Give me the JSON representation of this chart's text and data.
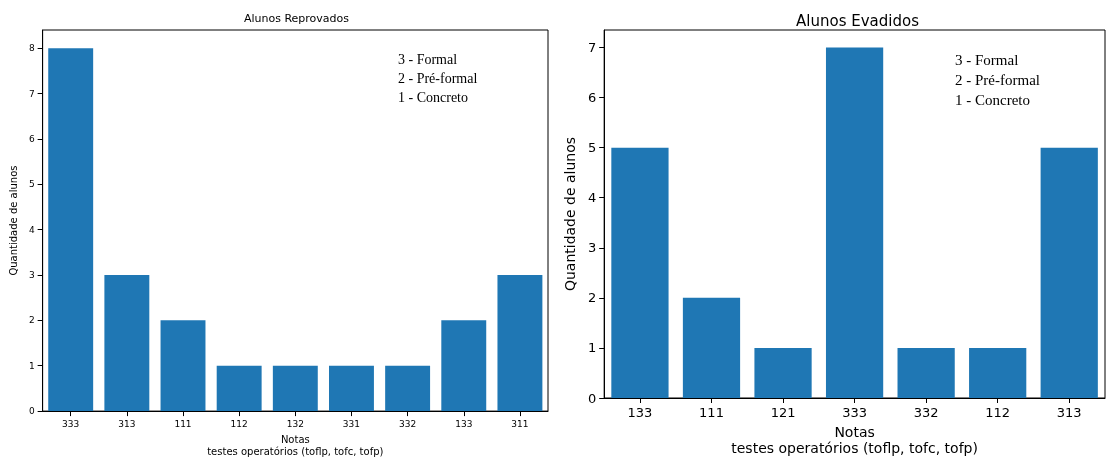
{
  "chart_data": [
    {
      "type": "bar",
      "title": "Alunos Reprovados",
      "xlabel": "Notas\ntestes operatórios (toflp, tofc, tofp)",
      "ylabel": "Quantidade de alunos",
      "categories": [
        "333",
        "313",
        "111",
        "112",
        "132",
        "331",
        "332",
        "133",
        "311"
      ],
      "values": [
        8,
        3,
        2,
        1,
        1,
        1,
        1,
        2,
        3
      ],
      "color": "#1f77b4",
      "ylim": [
        0,
        8.4
      ],
      "yticks": [
        0,
        1,
        2,
        3,
        4,
        5,
        6,
        7,
        8
      ],
      "grid": false,
      "annotations": [
        "3 - Formal",
        "2 - Pré-formal",
        "1 - Concreto"
      ]
    },
    {
      "type": "bar",
      "title": "Alunos Evadidos",
      "xlabel": "Notas\ntestes operatórios (toflp, tofc, tofp)",
      "ylabel": "Quantidade de alunos",
      "categories": [
        "133",
        "111",
        "121",
        "333",
        "332",
        "112",
        "313"
      ],
      "values": [
        5,
        2,
        1,
        7,
        1,
        1,
        5
      ],
      "color": "#1f77b4",
      "ylim": [
        0,
        7.35
      ],
      "yticks": [
        0,
        1,
        2,
        3,
        4,
        5,
        6,
        7
      ],
      "grid": false,
      "annotations": [
        "3 - Formal",
        "2 - Pré-formal",
        "1 - Concreto"
      ]
    }
  ]
}
